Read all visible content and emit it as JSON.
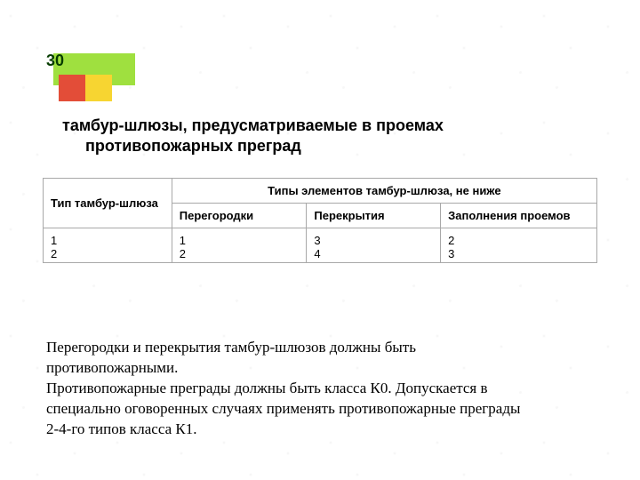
{
  "page_number": "30",
  "page_number_fontsize": 18,
  "page_number_color": "#063c00",
  "logo": {
    "green": "#9fe03f",
    "red": "#e34d38",
    "yellow": "#f7d531"
  },
  "title": {
    "line1": "тамбур-шлюзы, предусматриваемые в проемах",
    "line2": "противопожарных преград",
    "fontsize": 18,
    "color": "#000000"
  },
  "table": {
    "border_color": "#a8a8a8",
    "header_fontsize": 13,
    "cell_fontsize": 13,
    "row_header": "Тип тамбур-шлюза",
    "super_header": "Типы элементов тамбур-шлюза, не ниже",
    "cols": [
      "Перегородки",
      "Перекрытия",
      "Заполнения проемов"
    ],
    "rows": [
      {
        "type": "1",
        "vals": [
          "1",
          "3",
          "2"
        ]
      },
      {
        "type": "2",
        "vals": [
          "2",
          "4",
          "3"
        ]
      }
    ]
  },
  "body": {
    "fontsize": 17,
    "color": "#000000",
    "lines": [
      "Перегородки и перекрытия тамбур-шлюзов должны быть",
      "противопожарными.",
      "Противопожарные преграды должны быть класса К0. Допускается в",
      "специально оговоренных случаях применять противопожарные преграды",
      "2-4-го типов класса К1."
    ]
  }
}
